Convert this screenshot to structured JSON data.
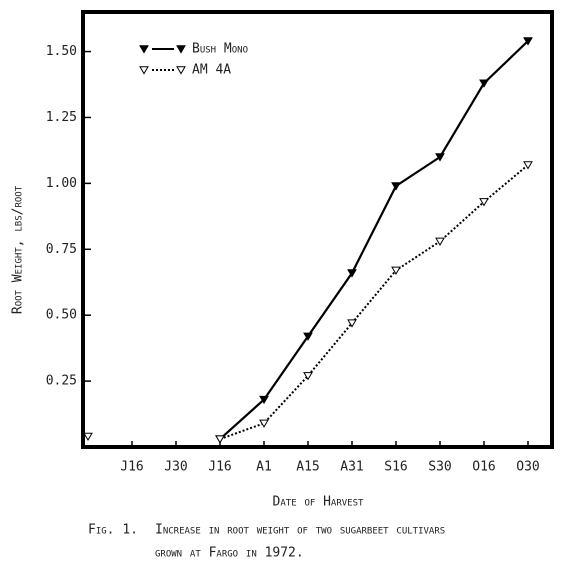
{
  "chart_data": {
    "type": "line",
    "y_label": "Root Weight, lbs/root",
    "x_label": "Date of Harvest",
    "caption": [
      "Fig. 1.",
      "Increase in root weight of two sugarbeet cultivars",
      "grown at Fargo in 1972."
    ],
    "categories": [
      null,
      "J16",
      "J30",
      "J16",
      "A1",
      "A15",
      "A31",
      "S16",
      "S30",
      "O16",
      "O30"
    ],
    "series": [
      {
        "name": "Bush Mono",
        "color": "#000000",
        "line_style": "solid",
        "marker_fill": "filled",
        "values": [
          null,
          null,
          null,
          0.03,
          0.18,
          0.42,
          0.66,
          0.99,
          1.1,
          1.38,
          1.54
        ]
      },
      {
        "name": "AM 4A",
        "color": "#000000",
        "line_style": "dotted",
        "marker_fill": "open",
        "values": [
          0.04,
          null,
          null,
          0.03,
          0.09,
          0.27,
          0.47,
          0.67,
          0.78,
          0.93,
          1.07
        ]
      }
    ],
    "ylim": [
      0,
      1.65
    ],
    "yticks": [
      {
        "value": 0.25,
        "label": "0.25"
      },
      {
        "value": 0.5,
        "label": "0.50"
      },
      {
        "value": 0.75,
        "label": "0.75"
      },
      {
        "value": 1,
        "label": "1.00"
      },
      {
        "value": 1.25,
        "label": "1.25"
      },
      {
        "value": 1.5,
        "label": "1.50"
      }
    ],
    "grid": false,
    "legend": "upper left"
  }
}
